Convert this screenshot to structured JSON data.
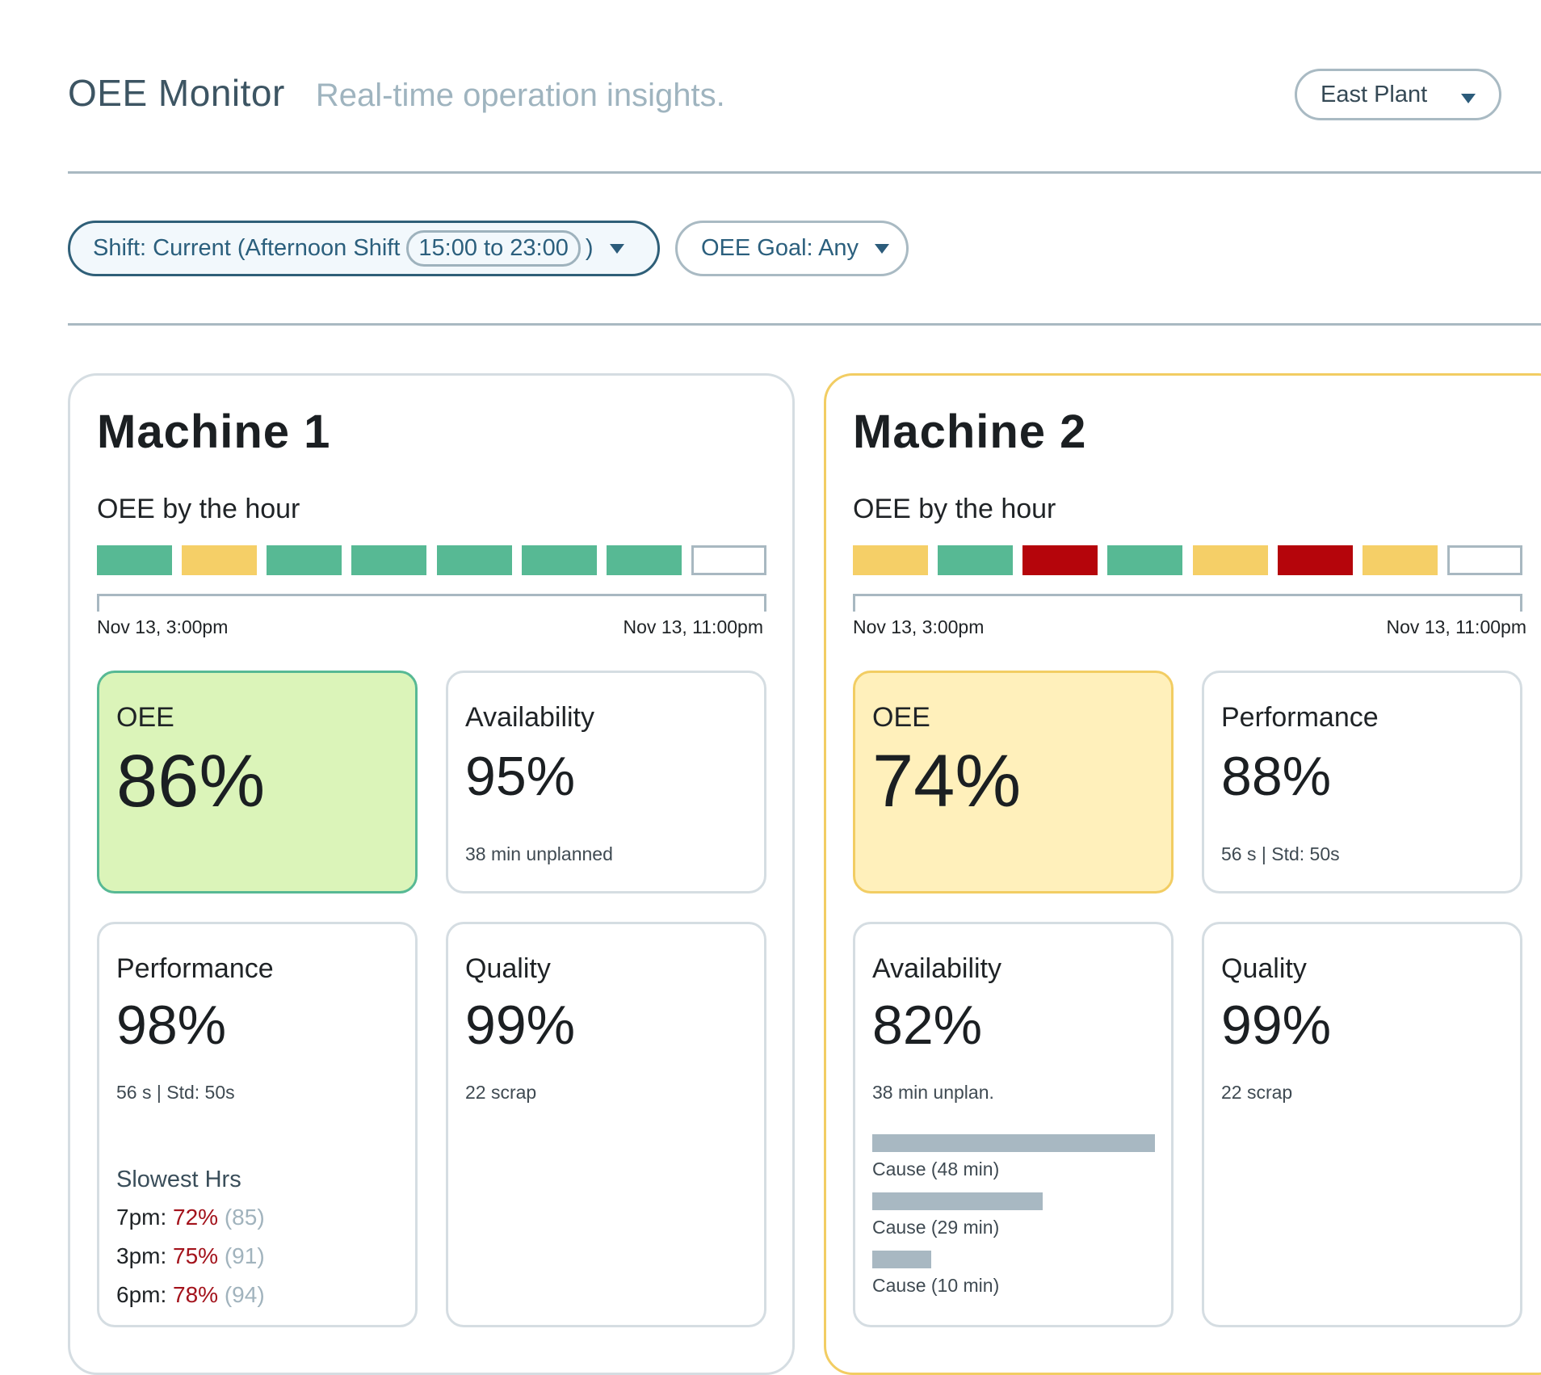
{
  "header": {
    "title": "OEE Monitor",
    "subtitle": "Real-time operation insights.",
    "plant_select": {
      "value": "East Plant",
      "icon": "chevron-down-icon"
    }
  },
  "filters": {
    "shift": {
      "prefix": "Shift: Current (Afternoon Shift",
      "time": "15:00 to 23:00",
      "suffix": ")"
    },
    "goal": {
      "label": "OEE Goal: Any"
    }
  },
  "colors": {
    "good": "#57b994",
    "warn": "#f5cf67",
    "bad": "#b5050b",
    "empty": "#ffffff",
    "oee_good_bg": "#dbf4b9",
    "oee_warn_bg": "#fff0bb",
    "accent": "#2b5f7d"
  },
  "machines": [
    {
      "name": "Machine 1",
      "hour_label": "OEE by the hour",
      "hours": [
        "green",
        "yellow",
        "green",
        "green",
        "green",
        "green",
        "green",
        "empty"
      ],
      "axis_start": "Nov 13, 3:00pm",
      "axis_end": "Nov 13, 11:00pm",
      "oee": {
        "label": "OEE",
        "value": "86%"
      },
      "availability": {
        "label": "Availability",
        "value": "95%",
        "detail": "38 min unplanned"
      },
      "performance": {
        "label": "Performance",
        "value": "98%",
        "detail": "56 s | Std: 50s",
        "slowest_title": "Slowest Hrs",
        "slowest": [
          {
            "hour": "7pm:",
            "pct": "72%",
            "ref": "(85)"
          },
          {
            "hour": "3pm:",
            "pct": "75%",
            "ref": "(91)"
          },
          {
            "hour": "6pm:",
            "pct": "78%",
            "ref": "(94)"
          }
        ]
      },
      "quality": {
        "label": "Quality",
        "value": "99%",
        "detail": "22 scrap"
      }
    },
    {
      "name": "Machine 2",
      "hour_label": "OEE by the hour",
      "hours": [
        "yellow",
        "green",
        "red",
        "green",
        "yellow",
        "red",
        "yellow",
        "empty"
      ],
      "axis_start": "Nov 13, 3:00pm",
      "axis_end": "Nov 13, 11:00pm",
      "oee": {
        "label": "OEE",
        "value": "74%"
      },
      "performance": {
        "label": "Performance",
        "value": "88%",
        "detail": "56 s | Std: 50s"
      },
      "availability": {
        "label": "Availability",
        "value": "82%",
        "detail": "38 min unplan.",
        "causes": [
          {
            "label": "Cause (48 min)",
            "minutes": 48
          },
          {
            "label": "Cause (29 min)",
            "minutes": 29
          },
          {
            "label": "Cause (10 min)",
            "minutes": 10
          }
        ]
      },
      "quality": {
        "label": "Quality",
        "value": "99%",
        "detail": "22 scrap"
      }
    }
  ]
}
